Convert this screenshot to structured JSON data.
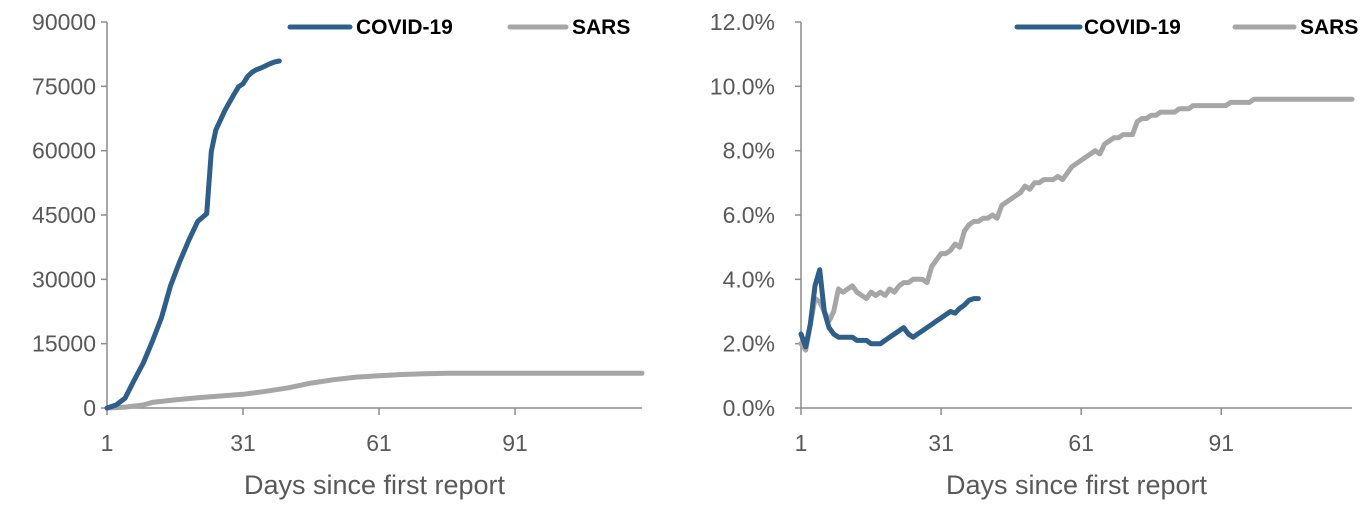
{
  "colors": {
    "covid": "#2E5F8A",
    "sars": "#A6A6A6",
    "axis": "#8C8C8C",
    "text": "#595959"
  },
  "chart_data": [
    {
      "type": "line",
      "title": "",
      "xlabel": "Days since first report",
      "ylabel": "",
      "xlim": [
        1,
        119
      ],
      "ylim": [
        0,
        90000
      ],
      "xticks": [
        "1",
        "31",
        "61",
        "91"
      ],
      "xtick_values": [
        1,
        31,
        61,
        91
      ],
      "yticks": [
        "0",
        "15000",
        "30000",
        "45000",
        "60000",
        "75000",
        "90000"
      ],
      "ytick_values": [
        0,
        15000,
        30000,
        45000,
        60000,
        75000,
        90000
      ],
      "grid": false,
      "legend": "top-right",
      "series": [
        {
          "name": "COVID-19",
          "color": "#2E5F8A",
          "x": [
            1,
            3,
            5,
            7,
            9,
            11,
            13,
            15,
            17,
            19,
            21,
            23,
            24,
            25,
            27,
            29,
            30,
            31,
            32,
            33,
            34,
            35,
            36,
            37,
            38,
            39
          ],
          "y": [
            0,
            700,
            2300,
            6500,
            10500,
            15500,
            21000,
            28500,
            34000,
            39000,
            43500,
            45300,
            59800,
            64800,
            69400,
            73100,
            74900,
            75600,
            77300,
            78300,
            78900,
            79300,
            79800,
            80300,
            80700,
            80900
          ]
        },
        {
          "name": "SARS",
          "color": "#A6A6A6",
          "x": [
            1,
            5,
            9,
            11,
            16,
            21,
            26,
            31,
            36,
            41,
            46,
            51,
            56,
            61,
            66,
            71,
            76,
            81,
            91,
            101,
            111,
            119
          ],
          "y": [
            0,
            200,
            700,
            1300,
            1900,
            2400,
            2800,
            3200,
            3900,
            4700,
            5800,
            6600,
            7200,
            7500,
            7800,
            8000,
            8100,
            8100,
            8100,
            8100,
            8100,
            8100
          ]
        }
      ]
    },
    {
      "type": "line",
      "title": "",
      "xlabel": "Days since first report",
      "ylabel": "",
      "xlim": [
        1,
        119
      ],
      "ylim": [
        0,
        12
      ],
      "xticks": [
        "1",
        "31",
        "61",
        "91"
      ],
      "xtick_values": [
        1,
        31,
        61,
        91
      ],
      "yticks": [
        "0.0%",
        "2.0%",
        "4.0%",
        "6.0%",
        "8.0%",
        "10.0%",
        "12.0%"
      ],
      "ytick_values": [
        0,
        2,
        4,
        6,
        8,
        10,
        12
      ],
      "grid": false,
      "legend": "top-right",
      "series": [
        {
          "name": "COVID-19",
          "color": "#2E5F8A",
          "x": [
            1,
            2,
            3,
            4,
            5,
            6,
            7,
            8,
            9,
            10,
            11,
            12,
            13,
            14,
            15,
            16,
            17,
            18,
            19,
            20,
            21,
            22,
            23,
            24,
            25,
            26,
            27,
            28,
            29,
            30,
            31,
            32,
            33,
            34,
            35,
            36,
            37,
            38,
            39
          ],
          "y": [
            2.3,
            1.9,
            2.6,
            3.8,
            4.3,
            3.0,
            2.5,
            2.3,
            2.2,
            2.2,
            2.2,
            2.2,
            2.1,
            2.1,
            2.1,
            2.0,
            2.0,
            2.0,
            2.1,
            2.2,
            2.3,
            2.4,
            2.5,
            2.3,
            2.2,
            2.3,
            2.4,
            2.5,
            2.6,
            2.7,
            2.8,
            2.9,
            3.0,
            2.95,
            3.1,
            3.2,
            3.35,
            3.4,
            3.4
          ]
        },
        {
          "name": "SARS",
          "color": "#A6A6A6",
          "x": [
            1,
            2,
            3,
            4,
            5,
            6,
            7,
            8,
            9,
            10,
            11,
            12,
            13,
            14,
            15,
            16,
            17,
            18,
            19,
            20,
            21,
            22,
            23,
            24,
            25,
            26,
            27,
            28,
            29,
            30,
            31,
            32,
            33,
            34,
            35,
            36,
            37,
            38,
            39,
            40,
            41,
            42,
            43,
            44,
            45,
            46,
            47,
            48,
            49,
            50,
            51,
            52,
            53,
            54,
            55,
            56,
            57,
            58,
            59,
            60,
            61,
            62,
            63,
            64,
            65,
            66,
            67,
            68,
            69,
            70,
            71,
            72,
            73,
            74,
            75,
            76,
            77,
            78,
            79,
            80,
            81,
            82,
            83,
            84,
            85,
            86,
            87,
            88,
            89,
            90,
            91,
            92,
            93,
            94,
            95,
            96,
            97,
            98,
            99,
            100,
            101,
            102,
            103,
            104,
            105,
            106,
            107,
            108,
            109,
            110,
            111,
            112,
            113,
            114,
            115,
            116,
            117,
            118,
            119
          ],
          "y": [
            2.0,
            1.8,
            2.6,
            3.4,
            3.3,
            3.0,
            2.7,
            3.0,
            3.7,
            3.6,
            3.7,
            3.8,
            3.6,
            3.5,
            3.4,
            3.6,
            3.5,
            3.6,
            3.5,
            3.7,
            3.6,
            3.8,
            3.9,
            3.9,
            4.0,
            4.0,
            4.0,
            3.9,
            4.4,
            4.6,
            4.8,
            4.8,
            4.9,
            5.1,
            5.0,
            5.5,
            5.7,
            5.8,
            5.8,
            5.9,
            5.9,
            6.0,
            5.9,
            6.3,
            6.4,
            6.5,
            6.6,
            6.7,
            6.9,
            6.8,
            7.0,
            7.0,
            7.1,
            7.1,
            7.1,
            7.2,
            7.1,
            7.3,
            7.5,
            7.6,
            7.7,
            7.8,
            7.9,
            8.0,
            7.9,
            8.2,
            8.3,
            8.4,
            8.4,
            8.5,
            8.5,
            8.5,
            8.9,
            9.0,
            9.0,
            9.1,
            9.1,
            9.2,
            9.2,
            9.2,
            9.2,
            9.3,
            9.3,
            9.3,
            9.4,
            9.4,
            9.4,
            9.4,
            9.4,
            9.4,
            9.4,
            9.4,
            9.5,
            9.5,
            9.5,
            9.5,
            9.5,
            9.6,
            9.6,
            9.6,
            9.6,
            9.6,
            9.6,
            9.6,
            9.6,
            9.6,
            9.6,
            9.6,
            9.6,
            9.6,
            9.6,
            9.6,
            9.6,
            9.6,
            9.6,
            9.6,
            9.6,
            9.6,
            9.6
          ]
        }
      ]
    }
  ]
}
